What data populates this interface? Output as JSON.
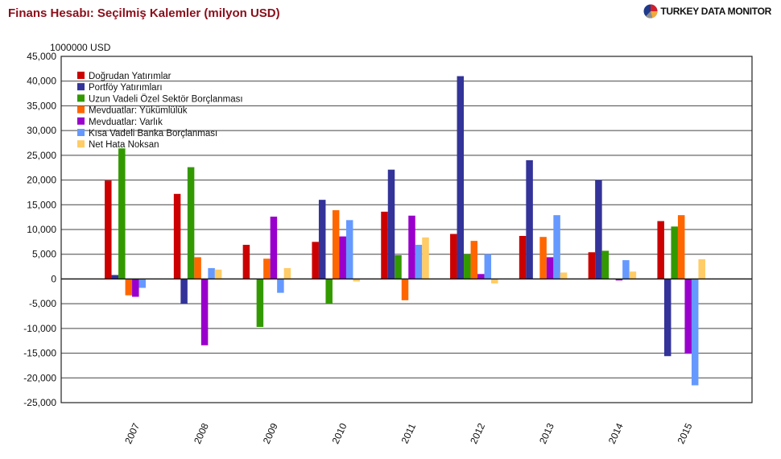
{
  "header": {
    "title": "Finans Hesabı: Seçilmiş Kalemler (milyon USD)",
    "brand": "TURKEY DATA MONITOR"
  },
  "chart_data": {
    "type": "bar",
    "title": "Finans Hesabı: Seçilmiş Kalemler (milyon USD)",
    "unit_label": "1000000 USD",
    "xlabel": "",
    "ylabel": "",
    "ylim": [
      -25000,
      45000
    ],
    "ytick_step": 5000,
    "ytick_labels": [
      "45,000",
      "40,000",
      "35,000",
      "30,000",
      "25,000",
      "20,000",
      "15,000",
      "10,000",
      "5,000",
      "0",
      "-5,000",
      "-10,000",
      "-15,000",
      "-20,000",
      "-25,000"
    ],
    "grid": true,
    "legend_position": "top-left",
    "categories": [
      "2007",
      "2008",
      "2009",
      "2010",
      "2011",
      "2012",
      "2013",
      "2014",
      "2015"
    ],
    "series": [
      {
        "name": "Doğrudan Yatırımlar",
        "color": "#cc0000",
        "values": [
          19900,
          17200,
          6900,
          7500,
          13600,
          9100,
          8700,
          5400,
          11700
        ]
      },
      {
        "name": "Portföy Yatırımları",
        "color": "#333399",
        "values": [
          800,
          -5000,
          0,
          16000,
          22100,
          41000,
          24000,
          20000,
          -15600
        ]
      },
      {
        "name": "Uzun Vadeli Özel Sektör Borçlanması",
        "color": "#339900",
        "values": [
          26400,
          22600,
          -9700,
          -5000,
          4800,
          5000,
          0,
          5700,
          10600
        ]
      },
      {
        "name": "Mevduatlar: Yükümlülük",
        "color": "#ff6600",
        "values": [
          -3300,
          4400,
          4100,
          13900,
          -4300,
          7700,
          8500,
          0,
          12900
        ]
      },
      {
        "name": "Mevduatlar: Varlık",
        "color": "#9900cc",
        "values": [
          -3600,
          -13400,
          12600,
          8600,
          12800,
          1000,
          4400,
          -300,
          -15100
        ]
      },
      {
        "name": "Kısa Vadeli Banka Borçlanması",
        "color": "#6699ff",
        "values": [
          -1800,
          2200,
          -2800,
          11900,
          6900,
          5000,
          12900,
          3800,
          -21500
        ]
      },
      {
        "name": "Net Hata Noksan",
        "color": "#ffcc66",
        "values": [
          0,
          1900,
          2200,
          -500,
          8400,
          -900,
          1300,
          1500,
          4000
        ]
      }
    ]
  }
}
